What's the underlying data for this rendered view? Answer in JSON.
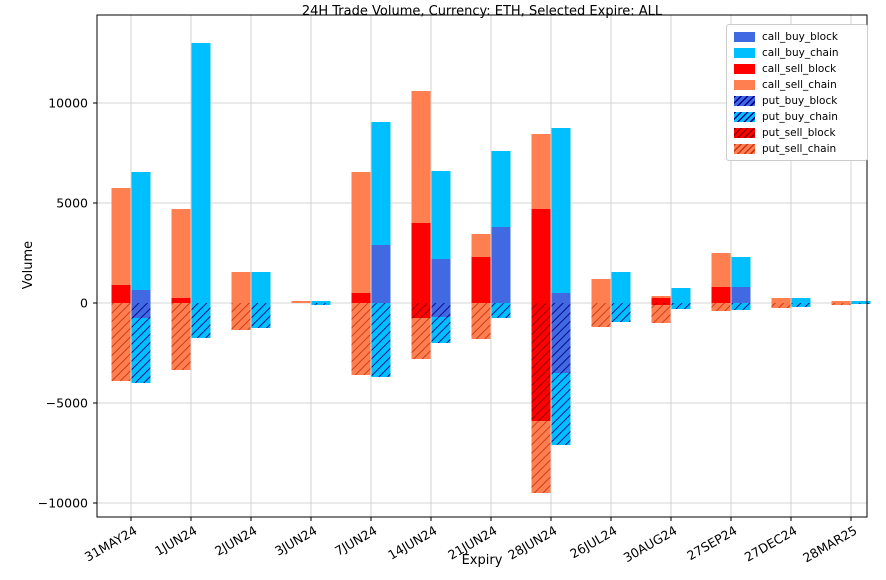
{
  "chart_data": {
    "type": "bar",
    "title": "24H Trade Volume, Currency: ETH, Selected Expire: ALL",
    "xlabel": "Expiry",
    "ylabel": "Volume",
    "legend_position": "upper right",
    "grid": true,
    "ylim": [
      -10700,
      14400
    ],
    "yticks": [
      -10000,
      -5000,
      0,
      5000,
      10000
    ],
    "categories": [
      "31MAY24",
      "1JUN24",
      "2JUN24",
      "3JUN24",
      "7JUN24",
      "14JUN24",
      "21JUN24",
      "28JUN24",
      "26JUL24",
      "30AUG24",
      "27SEP24",
      "27DEC24",
      "28MAR25"
    ],
    "series": [
      {
        "name": "call_buy_block",
        "side": "buy",
        "color": "#4169e1",
        "hatch": false,
        "hatch_color": null,
        "values": [
          650,
          0,
          0,
          0,
          2900,
          2200,
          3800,
          500,
          0,
          0,
          800,
          0,
          0
        ]
      },
      {
        "name": "call_buy_chain",
        "side": "buy",
        "color": "#00bfff",
        "hatch": false,
        "hatch_color": null,
        "values": [
          5900,
          13000,
          1550,
          100,
          6150,
          4400,
          3800,
          8250,
          1550,
          750,
          1500,
          250,
          100
        ]
      },
      {
        "name": "call_sell_block",
        "side": "sell",
        "color": "#ff0000",
        "hatch": false,
        "hatch_color": null,
        "values": [
          900,
          250,
          0,
          0,
          500,
          4000,
          2300,
          4700,
          0,
          250,
          800,
          0,
          0
        ]
      },
      {
        "name": "call_sell_chain",
        "side": "sell",
        "color": "#ff7f50",
        "hatch": false,
        "hatch_color": null,
        "values": [
          4850,
          4450,
          1550,
          100,
          6050,
          6600,
          1150,
          3750,
          1200,
          100,
          1700,
          250,
          100
        ]
      },
      {
        "name": "put_buy_block",
        "side": "buy",
        "color": "#4169e1",
        "hatch": true,
        "hatch_color": "#00008b",
        "values": [
          -750,
          0,
          0,
          0,
          0,
          -700,
          0,
          -3500,
          0,
          0,
          0,
          0,
          0
        ]
      },
      {
        "name": "put_buy_chain",
        "side": "buy",
        "color": "#00bfff",
        "hatch": true,
        "hatch_color": "#000080",
        "values": [
          -3250,
          -1750,
          -1250,
          -100,
          -3700,
          -1300,
          -750,
          -3600,
          -950,
          -300,
          -350,
          -200,
          -50
        ]
      },
      {
        "name": "put_sell_block",
        "side": "sell",
        "color": "#ff0000",
        "hatch": true,
        "hatch_color": "#8b0000",
        "values": [
          0,
          0,
          0,
          0,
          0,
          -750,
          0,
          -5900,
          0,
          -100,
          0,
          0,
          0
        ]
      },
      {
        "name": "put_sell_chain",
        "side": "sell",
        "color": "#ff7f50",
        "hatch": true,
        "hatch_color": "#cc3311",
        "values": [
          -3900,
          -3350,
          -1350,
          0,
          -3600,
          -2050,
          -1800,
          -3600,
          -1200,
          -900,
          -400,
          -250,
          -100
        ]
      }
    ],
    "colors": {
      "grid": "#c8c8c8",
      "spine": "#000000",
      "background": "#ffffff",
      "tick_text": "#000000"
    }
  }
}
